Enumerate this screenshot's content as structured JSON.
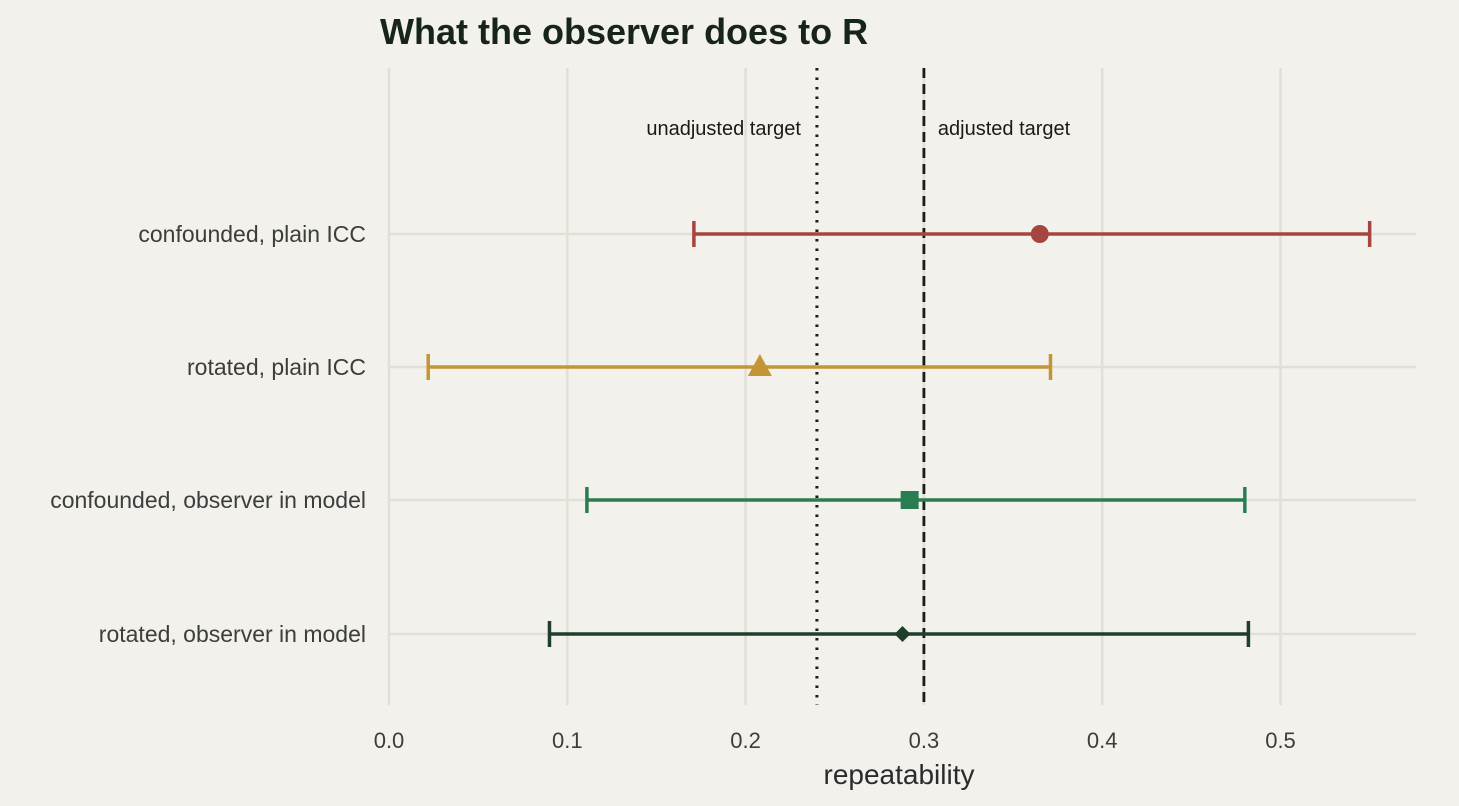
{
  "chart_data": {
    "type": "forest",
    "title": "What the observer does to R",
    "xlabel": "repeatability",
    "xlim": [
      0,
      0.575
    ],
    "xticks": [
      0.0,
      0.1,
      0.2,
      0.3,
      0.4,
      0.5
    ],
    "xtick_labels": [
      "0.0",
      "0.1",
      "0.2",
      "0.3",
      "0.4",
      "0.5"
    ],
    "grid": true,
    "rows": [
      {
        "label": "confounded, plain ICC",
        "estimate": 0.365,
        "lower": 0.171,
        "upper": 0.55,
        "color": "#a64540",
        "marker": "circle"
      },
      {
        "label": "rotated, plain ICC",
        "estimate": 0.208,
        "lower": 0.022,
        "upper": 0.371,
        "color": "#c49535",
        "marker": "triangle"
      },
      {
        "label": "confounded, observer in model",
        "estimate": 0.292,
        "lower": 0.111,
        "upper": 0.48,
        "color": "#2a7d53",
        "marker": "square"
      },
      {
        "label": "rotated, observer in model",
        "estimate": 0.288,
        "lower": 0.09,
        "upper": 0.482,
        "color": "#1f3f2c",
        "marker": "diamond"
      }
    ],
    "reference_lines": [
      {
        "label": "unadjusted target",
        "value": 0.24,
        "style": "dotted",
        "label_side": "left"
      },
      {
        "label": "adjusted target",
        "value": 0.3,
        "style": "dashed",
        "label_side": "right"
      }
    ]
  }
}
